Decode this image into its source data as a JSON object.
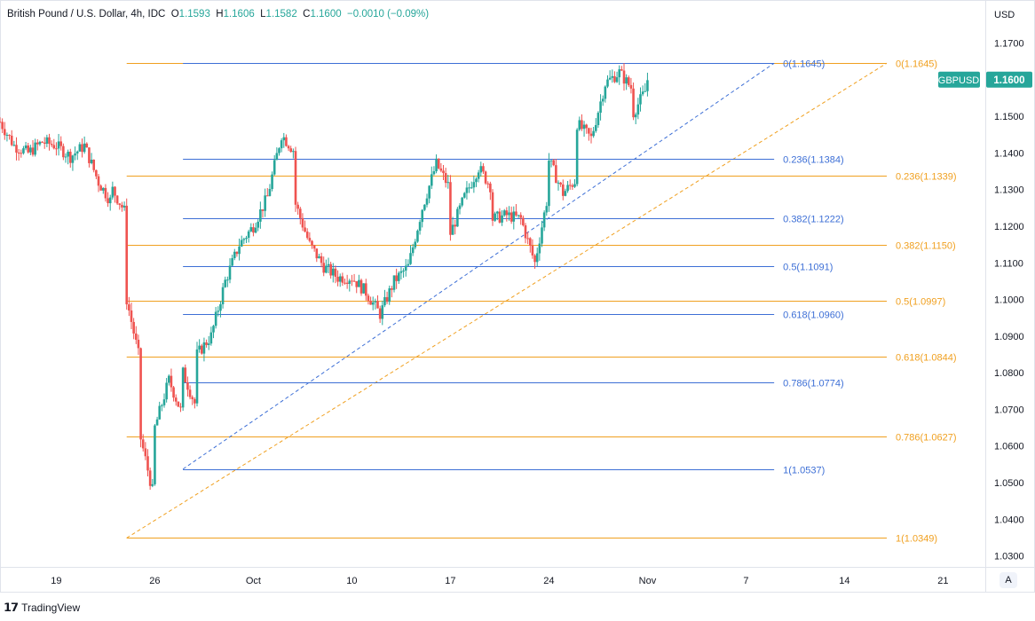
{
  "header": {
    "symbol": "British Pound / U.S. Dollar, 4h, IDC",
    "open_label": "O",
    "open": "1.1593",
    "high_label": "H",
    "high": "1.1606",
    "low_label": "L",
    "low": "1.1582",
    "close_label": "C",
    "close": "1.1600",
    "change": "−0.0010 (−0.09%)"
  },
  "footer": {
    "brand": "TradingView",
    "auto_button": "A"
  },
  "colors": {
    "up": "#26a69a",
    "down": "#ef5350",
    "fib_orange": "#f0a020",
    "fib_blue": "#3d6fd6",
    "text": "#131722",
    "axis_text": "#131722",
    "badge": "#26a69a"
  },
  "chart_data": {
    "type": "candlestick",
    "currency_label": "USD",
    "ticker_badge": "GBPUSD",
    "last_price": "1.1600",
    "ylim": [
      1.027,
      1.174
    ],
    "y_ticks": [
      1.17,
      1.16,
      1.15,
      1.14,
      1.13,
      1.12,
      1.11,
      1.1,
      1.09,
      1.08,
      1.07,
      1.06,
      1.05,
      1.04,
      1.03
    ],
    "y_tick_labels": [
      "1.1700",
      "1.1600",
      "1.1500",
      "1.1400",
      "1.1300",
      "1.1200",
      "1.1100",
      "1.1000",
      "1.0900",
      "1.0800",
      "1.0700",
      "1.0600",
      "1.0500",
      "1.0400",
      "1.0300"
    ],
    "x_axis": {
      "start": "2022-09-15",
      "end": "2022-11-24",
      "ticks": [
        {
          "date": "2022-09-19",
          "label": "19"
        },
        {
          "date": "2022-09-26",
          "label": "26"
        },
        {
          "date": "2022-10-03",
          "label": "Oct"
        },
        {
          "date": "2022-10-10",
          "label": "10"
        },
        {
          "date": "2022-10-17",
          "label": "17"
        },
        {
          "date": "2022-10-24",
          "label": "24"
        },
        {
          "date": "2022-10-31",
          "label": "Nov"
        },
        {
          "date": "2022-11-07",
          "label": "7"
        },
        {
          "date": "2022-11-14",
          "label": "14"
        },
        {
          "date": "2022-11-21",
          "label": "21"
        }
      ]
    },
    "price_path": [
      [
        "2022-09-15",
        1.1485
      ],
      [
        "2022-09-16",
        1.142
      ],
      [
        "2022-09-17",
        1.14
      ],
      [
        "2022-09-18",
        1.143
      ],
      [
        "2022-09-19",
        1.142
      ],
      [
        "2022-09-20",
        1.139
      ],
      [
        "2022-09-21",
        1.142
      ],
      [
        "2022-09-22",
        1.132
      ],
      [
        "2022-09-23",
        1.126
      ],
      [
        "2022-09-23",
        1.13
      ],
      [
        "2022-09-24",
        1.123
      ],
      [
        "2022-09-24",
        1.1
      ],
      [
        "2022-09-25",
        1.082
      ],
      [
        "2022-09-25",
        1.062
      ],
      [
        "2022-09-26",
        1.045
      ],
      [
        "2022-09-26",
        1.065
      ],
      [
        "2022-09-27",
        1.078
      ],
      [
        "2022-09-28",
        1.068
      ],
      [
        "2022-09-28",
        1.08
      ],
      [
        "2022-09-29",
        1.07
      ],
      [
        "2022-09-29",
        1.085
      ],
      [
        "2022-09-30",
        1.09
      ],
      [
        "2022-10-01",
        1.105
      ],
      [
        "2022-10-02",
        1.115
      ],
      [
        "2022-10-03",
        1.12
      ],
      [
        "2022-10-04",
        1.128
      ],
      [
        "2022-10-05",
        1.145
      ],
      [
        "2022-10-06",
        1.14
      ],
      [
        "2022-10-06",
        1.126
      ],
      [
        "2022-10-07",
        1.115
      ],
      [
        "2022-10-08",
        1.109
      ],
      [
        "2022-10-09",
        1.106
      ],
      [
        "2022-10-10",
        1.106
      ],
      [
        "2022-10-11",
        1.102
      ],
      [
        "2022-10-12",
        1.096
      ],
      [
        "2022-10-13",
        1.105
      ],
      [
        "2022-10-14",
        1.109
      ],
      [
        "2022-10-15",
        1.125
      ],
      [
        "2022-10-16",
        1.137
      ],
      [
        "2022-10-17",
        1.13
      ],
      [
        "2022-10-17",
        1.118
      ],
      [
        "2022-10-18",
        1.128
      ],
      [
        "2022-10-19",
        1.136
      ],
      [
        "2022-10-20",
        1.13
      ],
      [
        "2022-10-20",
        1.122
      ],
      [
        "2022-10-21",
        1.123
      ],
      [
        "2022-10-22",
        1.122
      ],
      [
        "2022-10-23",
        1.11
      ],
      [
        "2022-10-24",
        1.13
      ],
      [
        "2022-10-24",
        1.138
      ],
      [
        "2022-10-25",
        1.129
      ],
      [
        "2022-10-26",
        1.133
      ],
      [
        "2022-10-26",
        1.148
      ],
      [
        "2022-10-27",
        1.144
      ],
      [
        "2022-10-28",
        1.159
      ],
      [
        "2022-10-29",
        1.162
      ],
      [
        "2022-10-30",
        1.157
      ],
      [
        "2022-10-30",
        1.151
      ],
      [
        "2022-10-31",
        1.158
      ],
      [
        "2022-10-31",
        1.16
      ]
    ],
    "fibonacci": [
      {
        "name": "orange",
        "color": "#f0a020",
        "levels": [
          {
            "ratio": "0",
            "price": 1.1645,
            "label": "0(1.1645)"
          },
          {
            "ratio": "0.236",
            "price": 1.1339,
            "label": "0.236(1.1339)"
          },
          {
            "ratio": "0.382",
            "price": 1.115,
            "label": "0.382(1.1150)"
          },
          {
            "ratio": "0.5",
            "price": 1.0997,
            "label": "0.5(1.0997)"
          },
          {
            "ratio": "0.618",
            "price": 1.0844,
            "label": "0.618(1.0844)"
          },
          {
            "ratio": "0.786",
            "price": 1.0627,
            "label": "0.786(1.0627)"
          },
          {
            "ratio": "1",
            "price": 1.0349,
            "label": "1(1.0349)"
          }
        ],
        "start_date": "2022-09-24",
        "end_date": "2022-11-17",
        "trend": [
          [
            "2022-09-24",
            1.0349
          ],
          [
            "2022-11-17",
            1.1645
          ]
        ]
      },
      {
        "name": "blue",
        "color": "#3d6fd6",
        "levels": [
          {
            "ratio": "0",
            "price": 1.1645,
            "label": "0(1.1645)"
          },
          {
            "ratio": "0.236",
            "price": 1.1384,
            "label": "0.236(1.1384)"
          },
          {
            "ratio": "0.382",
            "price": 1.1222,
            "label": "0.382(1.1222)"
          },
          {
            "ratio": "0.5",
            "price": 1.1091,
            "label": "0.5(1.1091)"
          },
          {
            "ratio": "0.618",
            "price": 1.096,
            "label": "0.618(1.0960)"
          },
          {
            "ratio": "0.786",
            "price": 1.0774,
            "label": "0.786(1.0774)"
          },
          {
            "ratio": "1",
            "price": 1.0537,
            "label": "1(1.0537)"
          }
        ],
        "start_date": "2022-09-28",
        "end_date": "2022-11-09",
        "trend": [
          [
            "2022-09-28",
            1.0537
          ],
          [
            "2022-11-09",
            1.1645
          ]
        ]
      }
    ]
  }
}
